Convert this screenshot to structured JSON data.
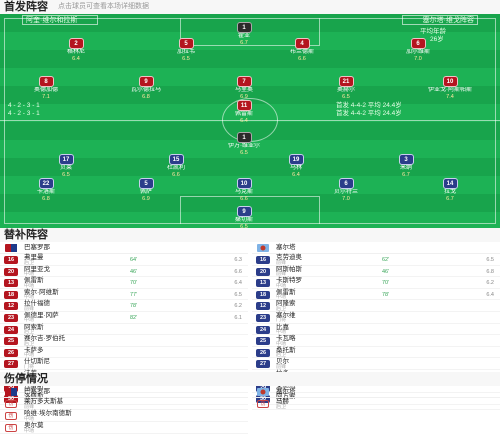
{
  "starting": {
    "title": "首发阵容",
    "subtitle": "点击球员可查看本场详细数据",
    "home_bar": "阿奎·维尔和拉斯",
    "away_bar": "塞尔塔·维戈阵容",
    "home_info_1": "4 - 2 - 3 - 1",
    "home_info_2": "4 - 2 - 3 - 1",
    "away_info_1": "平均年龄",
    "away_info_2": "26岁",
    "formation_left": "首发 4-4-2 平均 24.4岁",
    "formation_right": "首发 4-4-2 平均 24.4岁"
  },
  "pitch_players": [
    {
      "num": "1",
      "kit": "gk",
      "name": "霍亚",
      "rating": "6.7"
    },
    {
      "num": "2",
      "kit": "home",
      "name": "格林尼",
      "rating": "6.4"
    },
    {
      "num": "5",
      "kit": "home",
      "name": "加拉韦",
      "rating": "6.5"
    },
    {
      "num": "4",
      "kit": "home",
      "name": "布兰德斯",
      "rating": "6.6"
    },
    {
      "num": "6",
      "kit": "home",
      "name": "加尔维斯",
      "rating": "7.0"
    },
    {
      "num": "8",
      "kit": "home",
      "name": "奥德加德",
      "rating": "7.1"
    },
    {
      "num": "9",
      "kit": "home",
      "name": "瓦尔德拉马",
      "rating": "6.8"
    },
    {
      "num": "7",
      "kit": "home",
      "name": "马里奥",
      "rating": "6.9"
    },
    {
      "num": "21",
      "kit": "home",
      "name": "奥赫尔",
      "rating": "6.5"
    },
    {
      "num": "10",
      "kit": "home",
      "name": "伊亚戈·阿斯帕斯",
      "rating": "7.4"
    },
    {
      "num": "11",
      "kit": "home",
      "name": "佩雷斯",
      "rating": "6.4"
    },
    {
      "num": "1",
      "kit": "gk",
      "name": "伊万·维亚尔",
      "rating": "6.5"
    },
    {
      "num": "17",
      "kit": "away",
      "name": "贝莱",
      "rating": "6.5"
    },
    {
      "num": "15",
      "kit": "away",
      "name": "杜凯利",
      "rating": "6.6"
    },
    {
      "num": "19",
      "kit": "away",
      "name": "马林",
      "rating": "6.4"
    },
    {
      "num": "3",
      "kit": "away",
      "name": "米纳",
      "rating": "6.7"
    },
    {
      "num": "22",
      "kit": "away",
      "name": "卡洛斯",
      "rating": "6.8"
    },
    {
      "num": "5",
      "kit": "away",
      "name": "佩萨",
      "rating": "6.9"
    },
    {
      "num": "10",
      "kit": "away",
      "name": "马克斯",
      "rating": "6.6"
    },
    {
      "num": "6",
      "kit": "away",
      "name": "贝尔特兰",
      "rating": "7.0"
    },
    {
      "num": "14",
      "kit": "away",
      "name": "拉戈",
      "rating": "6.7"
    },
    {
      "num": "9",
      "kit": "away",
      "name": "桑切斯",
      "rating": "6.5"
    }
  ],
  "subs": {
    "title": "替补阵容",
    "home_coach": "巴塞罗那",
    "away_coach": "塞尔塔",
    "home": [
      {
        "num": "16",
        "name": "弗里曼",
        "pos": "后卫",
        "time": "64'",
        "rating": "6.3"
      },
      {
        "num": "20",
        "name": "阿里亚戈",
        "pos": "中场",
        "time": "46'",
        "rating": "6.6"
      },
      {
        "num": "13",
        "name": "佩雷斯",
        "pos": "中场",
        "time": "70'",
        "rating": "6.4"
      },
      {
        "num": "18",
        "name": "索尔·阿维斯",
        "pos": "中场",
        "time": "77'",
        "rating": "6.5"
      },
      {
        "num": "12",
        "name": "拉什福德",
        "pos": "前锋",
        "time": "78'",
        "rating": "6.2"
      },
      {
        "num": "23",
        "name": "佩德里·冈萨",
        "pos": "中场",
        "time": "82'",
        "rating": "6.1"
      },
      {
        "num": "24",
        "name": "阿索斯",
        "pos": "后卫",
        "time": "",
        "rating": ""
      },
      {
        "num": "25",
        "name": "赛尔吉·罗伯托",
        "pos": "后卫",
        "time": "",
        "rating": ""
      },
      {
        "num": "26",
        "name": "卡萨多",
        "pos": "中场",
        "time": "",
        "rating": ""
      },
      {
        "num": "27",
        "name": "什切斯尼",
        "pos": "门将",
        "time": "",
        "rating": ""
      },
      {
        "num": "28",
        "name": "法蒂",
        "pos": "前锋",
        "time": "",
        "rating": ""
      },
      {
        "num": "29",
        "name": "托雷斯",
        "pos": "前锋",
        "time": "",
        "rating": ""
      },
      {
        "num": "30",
        "name": "洛佩斯",
        "pos": "中场",
        "time": "",
        "rating": ""
      }
    ],
    "away": [
      {
        "num": "16",
        "name": "克劳迪奥",
        "pos": "前锋",
        "time": "62'",
        "rating": "6.5"
      },
      {
        "num": "20",
        "name": "阿斯帕斯",
        "pos": "前锋",
        "time": "46'",
        "rating": "6.8"
      },
      {
        "num": "13",
        "name": "卡斯特罗",
        "pos": "中场",
        "time": "70'",
        "rating": "6.2"
      },
      {
        "num": "18",
        "name": "佩雷斯",
        "pos": "中场",
        "time": "78'",
        "rating": "6.4"
      },
      {
        "num": "12",
        "name": "阿隆索",
        "pos": "后卫",
        "time": "",
        "rating": ""
      },
      {
        "num": "23",
        "name": "塞尔维",
        "pos": "门将",
        "time": "",
        "rating": ""
      },
      {
        "num": "24",
        "name": "比嘉",
        "pos": "中场",
        "time": "",
        "rating": ""
      },
      {
        "num": "25",
        "name": "卡瓦略",
        "pos": "中场",
        "time": "",
        "rating": ""
      },
      {
        "num": "26",
        "name": "桑托斯",
        "pos": "后卫",
        "time": "",
        "rating": ""
      },
      {
        "num": "27",
        "name": "贝尔",
        "pos": "前锋",
        "time": "",
        "rating": ""
      },
      {
        "num": "28",
        "name": "拉多",
        "pos": "前锋",
        "time": "",
        "rating": ""
      },
      {
        "num": "29",
        "name": "安德烈",
        "pos": "中场",
        "time": "",
        "rating": ""
      },
      {
        "num": "30",
        "name": "阿方索",
        "pos": "后卫",
        "time": "",
        "rating": ""
      }
    ]
  },
  "injuries": {
    "title": "伤停情况",
    "home_coach": "巴塞罗那",
    "away_coach": "塞尔塔",
    "home": [
      {
        "icon": "伤",
        "name": "莱万多夫斯基",
        "pos": "前锋"
      },
      {
        "icon": "伤",
        "name": "哈维·埃尔南德斯",
        "pos": "中场"
      },
      {
        "icon": "伤",
        "name": "奥尔莫",
        "pos": "中场"
      }
    ],
    "away": [
      {
        "icon": "伤",
        "name": "马赫",
        "pos": "后卫"
      }
    ]
  }
}
